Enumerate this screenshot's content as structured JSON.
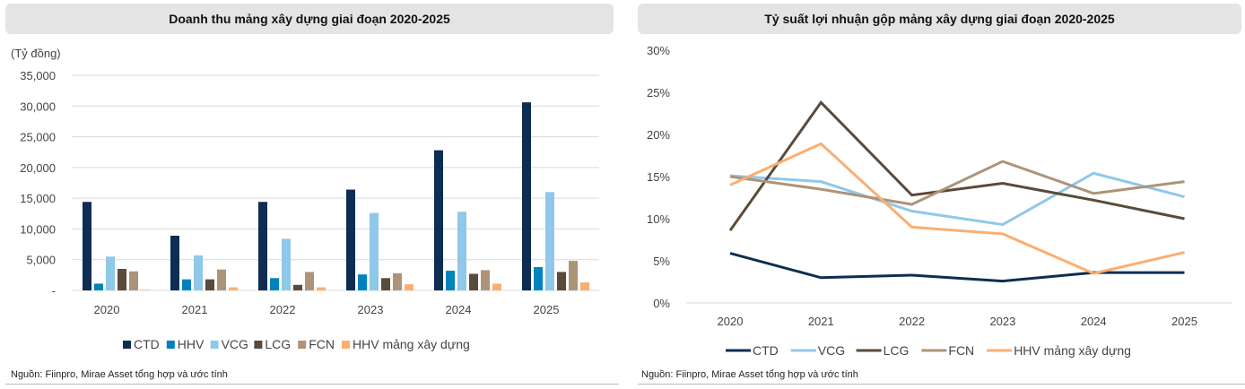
{
  "left_panel": {
    "title": "Doanh thu mảng xây dựng giai đoạn 2020-2025",
    "unit_label": "(Tỷ đồng)",
    "source": "Nguồn: Fiinpro, Mirae Asset tổng hợp và ước tính"
  },
  "right_panel": {
    "title": "Tỷ suất lợi nhuận gộp mảng xây dựng giai đoạn 2020-2025",
    "source": "Nguồn: Fiinpro, Mirae Asset tổng hợp và ước tính"
  },
  "chart_data": [
    {
      "type": "bar",
      "title": "Doanh thu mảng xây dựng giai đoạn 2020-2025",
      "ylabel": "(Tỷ đồng)",
      "xlabel": "",
      "categories": [
        "2020",
        "2021",
        "2022",
        "2023",
        "2024",
        "2025"
      ],
      "ylim": [
        0,
        35000
      ],
      "yticks": [
        0,
        5000,
        10000,
        15000,
        20000,
        25000,
        30000,
        35000
      ],
      "ytick_labels": [
        "-",
        "5,000",
        "10,000",
        "15,000",
        "20,000",
        "25,000",
        "30,000",
        "35,000"
      ],
      "grid": true,
      "legend_position": "bottom",
      "series": [
        {
          "name": "CTD",
          "color": "#0e2d52",
          "values": [
            14400,
            8900,
            14400,
            16400,
            22800,
            30600
          ]
        },
        {
          "name": "HHV",
          "color": "#0083bd",
          "values": [
            1100,
            1800,
            2000,
            2600,
            3200,
            3800
          ]
        },
        {
          "name": "VCG",
          "color": "#8fc8e8",
          "values": [
            5500,
            5700,
            8400,
            12600,
            12800,
            16000
          ]
        },
        {
          "name": "LCG",
          "color": "#5a4a3a",
          "values": [
            3500,
            1800,
            900,
            2000,
            2700,
            3000
          ]
        },
        {
          "name": "FCN",
          "color": "#ad9478",
          "values": [
            3100,
            3400,
            3000,
            2800,
            3300,
            4800
          ]
        },
        {
          "name": "HHV mảng xây dựng",
          "color": "#fbae70",
          "values": [
            100,
            500,
            500,
            1000,
            1100,
            1300
          ]
        }
      ]
    },
    {
      "type": "line",
      "title": "Tỷ suất lợi nhuận gộp mảng xây dựng giai đoạn 2020-2025",
      "xlabel": "",
      "ylabel": "",
      "categories": [
        "2020",
        "2021",
        "2022",
        "2023",
        "2024",
        "2025"
      ],
      "ylim": [
        0,
        30
      ],
      "yticks": [
        0,
        5,
        10,
        15,
        20,
        25,
        30
      ],
      "ytick_labels": [
        "0%",
        "5%",
        "10%",
        "15%",
        "20%",
        "25%",
        "30%"
      ],
      "grid": false,
      "legend_position": "bottom",
      "series": [
        {
          "name": "CTD",
          "color": "#0e2d52",
          "values": [
            5.9,
            3.0,
            3.3,
            2.6,
            3.6,
            3.6
          ]
        },
        {
          "name": "VCG",
          "color": "#8fc8e8",
          "values": [
            15.1,
            14.4,
            10.9,
            9.3,
            15.4,
            12.6
          ]
        },
        {
          "name": "LCG",
          "color": "#5a4a3a",
          "values": [
            8.6,
            23.8,
            12.8,
            14.2,
            12.2,
            10.0
          ]
        },
        {
          "name": "FCN",
          "color": "#ad9478",
          "values": [
            15.0,
            13.5,
            11.7,
            16.8,
            13.0,
            14.4
          ]
        },
        {
          "name": "HHV mảng xây dựng",
          "color": "#fbae70",
          "values": [
            14.0,
            18.9,
            9.0,
            8.2,
            3.5,
            6.0
          ]
        }
      ]
    }
  ]
}
